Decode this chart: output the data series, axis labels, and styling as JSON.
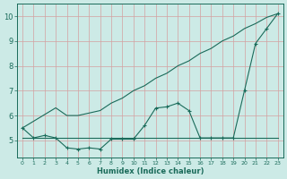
{
  "x": [
    0,
    1,
    2,
    3,
    4,
    5,
    6,
    7,
    8,
    9,
    10,
    11,
    12,
    13,
    14,
    15,
    16,
    17,
    18,
    19,
    20,
    21,
    22,
    23
  ],
  "line_diagonal": [
    5.5,
    5.77,
    6.04,
    6.31,
    6.0,
    6.0,
    6.1,
    6.2,
    6.5,
    6.7,
    7.0,
    7.2,
    7.5,
    7.7,
    8.0,
    8.2,
    8.5,
    8.7,
    9.0,
    9.2,
    9.5,
    9.7,
    9.95,
    10.1
  ],
  "line_curve": [
    5.5,
    5.1,
    5.2,
    5.1,
    4.7,
    4.65,
    4.7,
    4.65,
    5.05,
    5.05,
    5.05,
    5.6,
    6.3,
    6.35,
    6.5,
    6.2,
    5.1,
    5.1,
    5.1,
    5.1,
    7.0,
    8.9,
    9.5,
    10.1
  ],
  "line_flat": [
    5.1,
    5.1,
    5.1,
    5.1,
    5.1,
    5.1,
    5.1,
    5.1,
    5.1,
    5.1,
    5.1,
    5.1,
    5.1,
    5.1,
    5.1,
    5.1,
    5.1,
    5.1,
    5.1,
    5.1,
    5.1,
    5.1,
    5.1,
    5.1
  ],
  "color": "#1a6b5a",
  "bg_color": "#cceae6",
  "grid_color_major": "#d4a0a0",
  "grid_color_minor": "#d4a0a0",
  "xlabel": "Humidex (Indice chaleur)",
  "ylim": [
    4.3,
    10.5
  ],
  "xlim": [
    -0.5,
    23.5
  ],
  "yticks": [
    5,
    6,
    7,
    8,
    9,
    10
  ],
  "xticks": [
    0,
    1,
    2,
    3,
    4,
    5,
    6,
    7,
    8,
    9,
    10,
    11,
    12,
    13,
    14,
    15,
    16,
    17,
    18,
    19,
    20,
    21,
    22,
    23
  ]
}
